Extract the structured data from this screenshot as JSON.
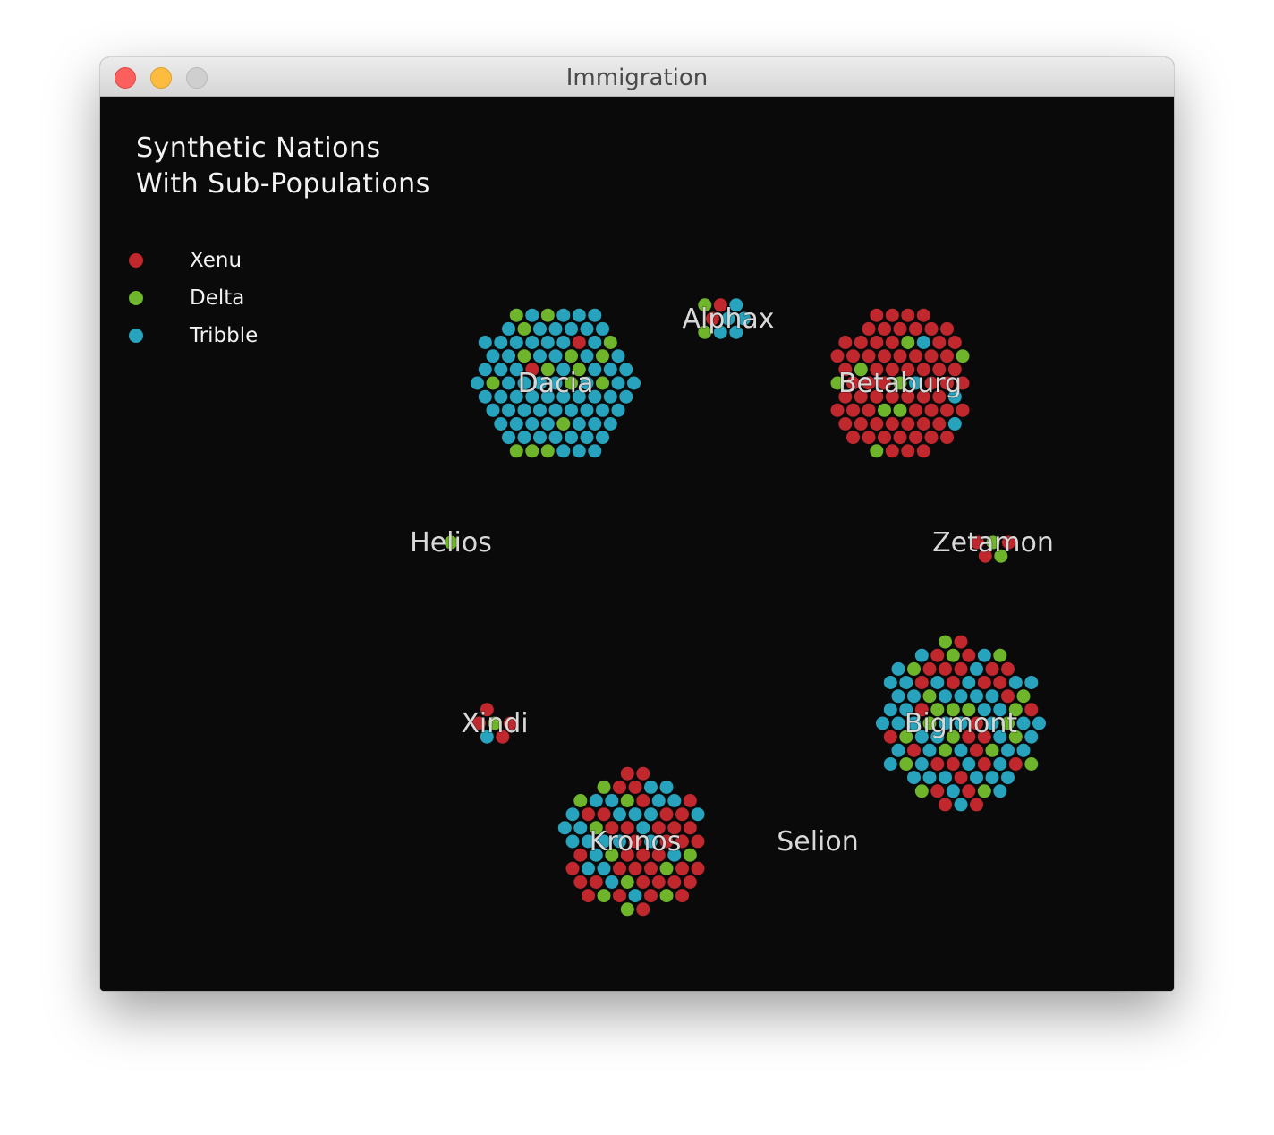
{
  "window": {
    "title": "Immigration"
  },
  "chart_data": {
    "type": "scatter",
    "title_lines": [
      "Synthetic Nations",
      "With Sub-Populations"
    ],
    "legend": [
      {
        "name": "Xenu",
        "color": "#c0282d"
      },
      {
        "name": "Delta",
        "color": "#6fb52c"
      },
      {
        "name": "Tribble",
        "color": "#27a3bd"
      }
    ],
    "nations": [
      {
        "name": "Dacia",
        "xenu": 2,
        "delta": 16,
        "tribble": 74
      },
      {
        "name": "Alphax",
        "xenu": 2,
        "delta": 2,
        "tribble": 5
      },
      {
        "name": "Betaburg",
        "xenu": 68,
        "delta": 8,
        "tribble": 4
      },
      {
        "name": "Helios",
        "xenu": 0,
        "delta": 1,
        "tribble": 0
      },
      {
        "name": "Zetamon",
        "xenu": 3,
        "delta": 2,
        "tribble": 0
      },
      {
        "name": "Xindi",
        "xenu": 4,
        "delta": 1,
        "tribble": 1
      },
      {
        "name": "Bigmont",
        "xenu": 30,
        "delta": 21,
        "tribble": 50
      },
      {
        "name": "Kronos",
        "xenu": 40,
        "delta": 11,
        "tribble": 25
      },
      {
        "name": "Selion",
        "xenu": 0,
        "delta": 0,
        "tribble": 0
      }
    ]
  }
}
